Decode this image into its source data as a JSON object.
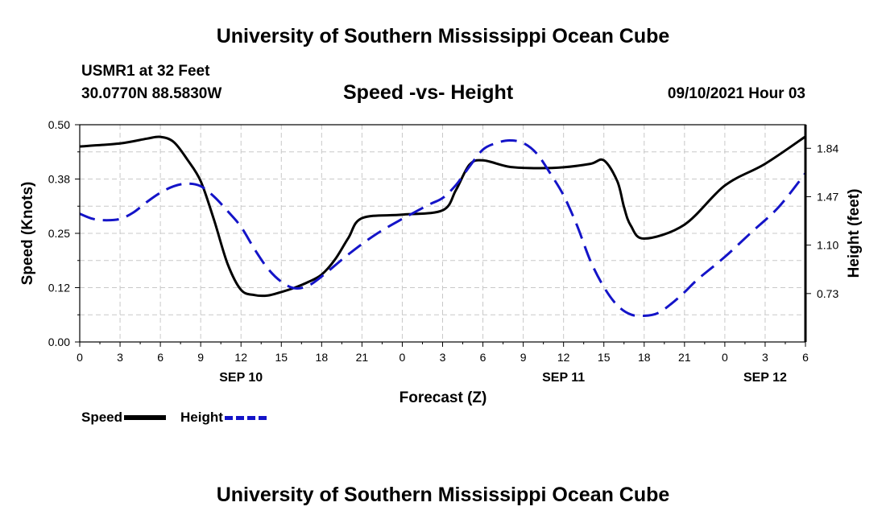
{
  "header": {
    "top_title": "University of Southern Mississippi Ocean Cube",
    "station": "USMR1 at 32 Feet",
    "coords": "30.0770N  88.5830W",
    "subtitle": "Speed -vs- Height",
    "datetime": "09/10/2021 Hour 03"
  },
  "footer": {
    "bottom_title": "University of Southern Mississippi Ocean Cube"
  },
  "colors": {
    "speed": "#000000",
    "height": "#1414c8",
    "grid": "#c8c8c8"
  },
  "chart_data": {
    "type": "line",
    "xlabel": "Forecast (Z)",
    "ylabel": "Speed (Knots)",
    "y2label": "Height (feet)",
    "x_range": [
      0,
      54
    ],
    "x_ticks": [
      0,
      3,
      6,
      9,
      12,
      15,
      18,
      21,
      24,
      27,
      30,
      33,
      36,
      39,
      42,
      45,
      48,
      51,
      54
    ],
    "x_tick_labels": [
      "0",
      "3",
      "6",
      "9",
      "12",
      "15",
      "18",
      "21",
      "0",
      "3",
      "6",
      "9",
      "12",
      "15",
      "18",
      "21",
      "0",
      "3",
      "6"
    ],
    "day_labels": [
      {
        "text": "SEP 10",
        "x": 12
      },
      {
        "text": "SEP 11",
        "x": 36
      },
      {
        "text": "SEP 12",
        "x": 51
      }
    ],
    "ylim": [
      0,
      0.5
    ],
    "y_ticks": [
      0,
      0.125,
      0.25,
      0.375,
      0.5
    ],
    "y_tick_labels": [
      "0.00",
      "0.12",
      "0.25",
      "0.38",
      "0.50"
    ],
    "y2lim": [
      0.36,
      2.02
    ],
    "y2_ticks": [
      0.73,
      1.1,
      1.47,
      1.84
    ],
    "y2_tick_labels": [
      "0.73",
      "1.10",
      "1.47",
      "1.84"
    ],
    "grid": true,
    "legend_position": "bottom-left",
    "series": [
      {
        "name": "Speed",
        "axis": "left",
        "style": "solid",
        "x": [
          0,
          3,
          5,
          6,
          7,
          8,
          9,
          10,
          11,
          12,
          13,
          14,
          15,
          16,
          17,
          18,
          19,
          20,
          21,
          24,
          27,
          28,
          29,
          30,
          32,
          34,
          36,
          38,
          39,
          40,
          40.5,
          41,
          42,
          45,
          48,
          51,
          54
        ],
        "values": [
          0.45,
          0.457,
          0.468,
          0.472,
          0.46,
          0.42,
          0.37,
          0.28,
          0.18,
          0.12,
          0.108,
          0.107,
          0.115,
          0.125,
          0.138,
          0.155,
          0.19,
          0.24,
          0.285,
          0.293,
          0.303,
          0.35,
          0.408,
          0.418,
          0.403,
          0.4,
          0.402,
          0.41,
          0.418,
          0.37,
          0.31,
          0.268,
          0.238,
          0.27,
          0.36,
          0.41,
          0.473
        ]
      },
      {
        "name": "Height",
        "axis": "right",
        "style": "dashed",
        "x": [
          0,
          1,
          2,
          3,
          4,
          5,
          6,
          7,
          8,
          9,
          10,
          11,
          12,
          13,
          14,
          15,
          16,
          17,
          18,
          20,
          22,
          24,
          26,
          27,
          28,
          29,
          30,
          31,
          32,
          33,
          34,
          35,
          36,
          37,
          38,
          39,
          40,
          41,
          42,
          43,
          44,
          45,
          46,
          48,
          50,
          52,
          54
        ],
        "values": [
          1.34,
          1.3,
          1.29,
          1.3,
          1.35,
          1.43,
          1.5,
          1.55,
          1.57,
          1.55,
          1.47,
          1.36,
          1.24,
          1.07,
          0.92,
          0.82,
          0.77,
          0.79,
          0.86,
          1.03,
          1.18,
          1.3,
          1.41,
          1.46,
          1.56,
          1.7,
          1.83,
          1.88,
          1.9,
          1.88,
          1.8,
          1.65,
          1.48,
          1.25,
          0.98,
          0.78,
          0.64,
          0.57,
          0.56,
          0.58,
          0.65,
          0.74,
          0.84,
          1.01,
          1.2,
          1.39,
          1.65
        ]
      }
    ]
  }
}
